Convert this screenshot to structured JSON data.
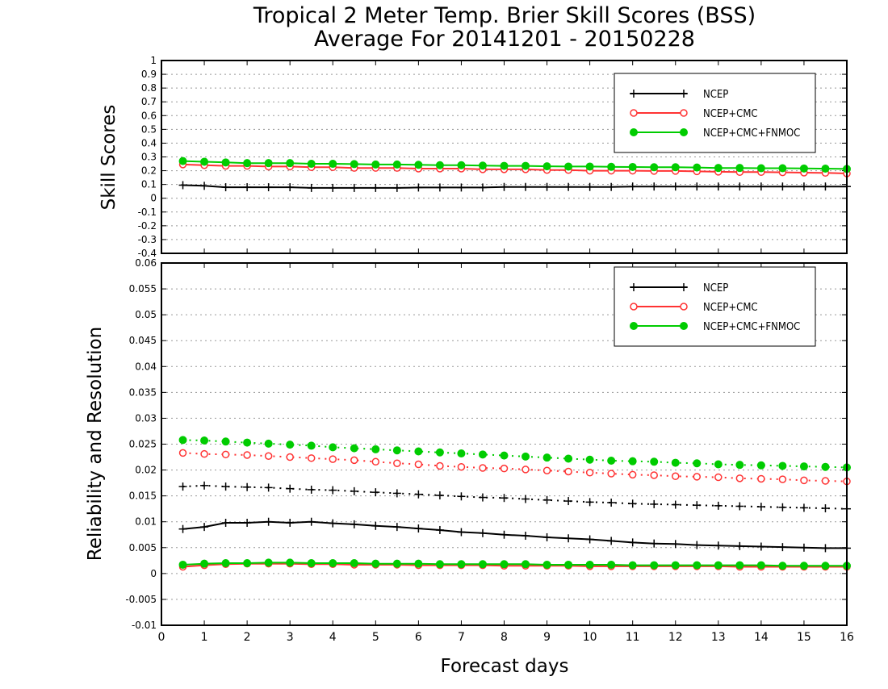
{
  "title_line1": "Tropical 2 Meter Temp. Brier Skill Scores (BSS)",
  "title_line2": "Average For 20141201 - 20150228",
  "xlabel": "Forecast days",
  "colors": {
    "NCEP": "#000000",
    "NCEP+CMC": "#ff3333",
    "NCEP+CMC+FNMOC": "#00cc00"
  },
  "chart_data": [
    {
      "type": "line",
      "ylabel": "Skill Scores",
      "xlim": [
        0,
        16
      ],
      "ylim": [
        -0.4,
        1.0
      ],
      "x_ticks": [
        0,
        1,
        2,
        3,
        4,
        5,
        6,
        7,
        8,
        9,
        10,
        11,
        12,
        13,
        14,
        15,
        16
      ],
      "y_ticks": [
        "1",
        "0.9",
        "0.8",
        "0.7",
        "0.6",
        "0.5",
        "0.4",
        "0.3",
        "0.2",
        "0.1",
        "0",
        "-0.1",
        "-0.2",
        "-0.3",
        "-0.4"
      ],
      "grid": true,
      "legend_position": "top-right",
      "x": [
        0.5,
        1,
        1.5,
        2,
        2.5,
        3,
        3.5,
        4,
        4.5,
        5,
        5.5,
        6,
        6.5,
        7,
        7.5,
        8,
        8.5,
        9,
        9.5,
        10,
        10.5,
        11,
        11.5,
        12,
        12.5,
        13,
        13.5,
        14,
        14.5,
        15,
        15.5,
        16
      ],
      "series": [
        {
          "name": "NCEP",
          "style": "solid-plus",
          "values": [
            0.095,
            0.09,
            0.08,
            0.08,
            0.08,
            0.08,
            0.075,
            0.075,
            0.075,
            0.075,
            0.075,
            0.078,
            0.078,
            0.078,
            0.078,
            0.082,
            0.082,
            0.082,
            0.082,
            0.082,
            0.082,
            0.085,
            0.085,
            0.085,
            0.085,
            0.085,
            0.085,
            0.085,
            0.085,
            0.085,
            0.085,
            0.085
          ]
        },
        {
          "name": "NCEP+CMC",
          "style": "solid-open-circle",
          "values": [
            0.245,
            0.24,
            0.235,
            0.235,
            0.23,
            0.23,
            0.225,
            0.225,
            0.22,
            0.22,
            0.22,
            0.215,
            0.215,
            0.215,
            0.21,
            0.21,
            0.21,
            0.205,
            0.205,
            0.2,
            0.2,
            0.2,
            0.198,
            0.198,
            0.195,
            0.192,
            0.19,
            0.19,
            0.188,
            0.186,
            0.184,
            0.18
          ]
        },
        {
          "name": "NCEP+CMC+FNMOC",
          "style": "solid-filled-circle",
          "values": [
            0.27,
            0.265,
            0.26,
            0.255,
            0.255,
            0.255,
            0.25,
            0.25,
            0.248,
            0.245,
            0.245,
            0.243,
            0.24,
            0.24,
            0.237,
            0.235,
            0.235,
            0.232,
            0.23,
            0.23,
            0.228,
            0.227,
            0.225,
            0.225,
            0.223,
            0.22,
            0.22,
            0.218,
            0.218,
            0.216,
            0.215,
            0.213
          ]
        }
      ]
    },
    {
      "type": "line",
      "ylabel": "Reliability and Resolution",
      "xlabel": "Forecast days",
      "xlim": [
        0,
        16
      ],
      "ylim": [
        -0.01,
        0.06
      ],
      "x_ticks": [
        0,
        1,
        2,
        3,
        4,
        5,
        6,
        7,
        8,
        9,
        10,
        11,
        12,
        13,
        14,
        15,
        16
      ],
      "y_ticks": [
        "0.06",
        "0.055",
        "0.05",
        "0.045",
        "0.04",
        "0.035",
        "0.03",
        "0.025",
        "0.02",
        "0.015",
        "0.01",
        "0.005",
        "0",
        "-0.005",
        "-0.01"
      ],
      "grid": true,
      "legend_position": "top-right",
      "x": [
        0.5,
        1,
        1.5,
        2,
        2.5,
        3,
        3.5,
        4,
        4.5,
        5,
        5.5,
        6,
        6.5,
        7,
        7.5,
        8,
        8.5,
        9,
        9.5,
        10,
        10.5,
        11,
        11.5,
        12,
        12.5,
        13,
        13.5,
        14,
        14.5,
        15,
        15.5,
        16
      ],
      "legend": [
        "NCEP",
        "NCEP+CMC",
        "NCEP+CMC+FNMOC"
      ],
      "series": [
        {
          "name": "NCEP",
          "measure": "resolution",
          "style": "dotted-plus",
          "values": [
            0.0168,
            0.017,
            0.0168,
            0.0167,
            0.0166,
            0.0164,
            0.0162,
            0.0161,
            0.0159,
            0.0157,
            0.0155,
            0.0153,
            0.0151,
            0.0149,
            0.0147,
            0.0146,
            0.0144,
            0.0142,
            0.014,
            0.0138,
            0.0137,
            0.0135,
            0.0134,
            0.0133,
            0.0132,
            0.0131,
            0.013,
            0.0129,
            0.0128,
            0.0127,
            0.0126,
            0.0125
          ]
        },
        {
          "name": "NCEP+CMC",
          "measure": "resolution",
          "style": "dotted-open-circle",
          "values": [
            0.0233,
            0.0231,
            0.023,
            0.0229,
            0.0227,
            0.0225,
            0.0223,
            0.0221,
            0.0219,
            0.0216,
            0.0213,
            0.0211,
            0.0208,
            0.0206,
            0.0204,
            0.0203,
            0.0201,
            0.0199,
            0.0197,
            0.0195,
            0.0193,
            0.0191,
            0.019,
            0.0188,
            0.0187,
            0.0186,
            0.0184,
            0.0183,
            0.0182,
            0.018,
            0.0179,
            0.0178
          ]
        },
        {
          "name": "NCEP+CMC+FNMOC",
          "measure": "resolution",
          "style": "dotted-filled-circle",
          "values": [
            0.0258,
            0.0257,
            0.0255,
            0.0253,
            0.0251,
            0.0249,
            0.0247,
            0.0244,
            0.0242,
            0.024,
            0.0238,
            0.0236,
            0.0234,
            0.0232,
            0.023,
            0.0228,
            0.0226,
            0.0224,
            0.0222,
            0.022,
            0.0218,
            0.0217,
            0.0216,
            0.0214,
            0.0213,
            0.0211,
            0.021,
            0.0209,
            0.0208,
            0.0207,
            0.0206,
            0.0205
          ]
        },
        {
          "name": "NCEP",
          "measure": "reliability",
          "style": "solid-plus",
          "values": [
            0.0086,
            0.009,
            0.0098,
            0.0098,
            0.01,
            0.0098,
            0.01,
            0.0097,
            0.0095,
            0.0092,
            0.009,
            0.0087,
            0.0084,
            0.008,
            0.0078,
            0.0075,
            0.0073,
            0.007,
            0.0068,
            0.0066,
            0.0063,
            0.006,
            0.0058,
            0.0057,
            0.0055,
            0.0054,
            0.0053,
            0.0052,
            0.0051,
            0.005,
            0.0049,
            0.0049
          ]
        },
        {
          "name": "NCEP+CMC",
          "measure": "reliability",
          "style": "solid-open-circle",
          "values": [
            0.0013,
            0.0016,
            0.0018,
            0.0019,
            0.0019,
            0.0019,
            0.0018,
            0.0018,
            0.0017,
            0.0017,
            0.0017,
            0.0016,
            0.0016,
            0.0016,
            0.0016,
            0.0015,
            0.0015,
            0.0015,
            0.0015,
            0.0014,
            0.0014,
            0.0014,
            0.0014,
            0.0014,
            0.0014,
            0.0014,
            0.0013,
            0.0013,
            0.0013,
            0.0013,
            0.0013,
            0.0013
          ]
        },
        {
          "name": "NCEP+CMC+FNMOC",
          "measure": "reliability",
          "style": "solid-filled-circle",
          "values": [
            0.0017,
            0.0019,
            0.002,
            0.002,
            0.0021,
            0.0021,
            0.002,
            0.002,
            0.002,
            0.0019,
            0.0019,
            0.0019,
            0.0018,
            0.0018,
            0.0018,
            0.0018,
            0.0018,
            0.0017,
            0.0017,
            0.0017,
            0.0017,
            0.0016,
            0.0016,
            0.0016,
            0.0016,
            0.0016,
            0.0016,
            0.0016,
            0.0015,
            0.0015,
            0.0015,
            0.0015
          ]
        }
      ]
    }
  ]
}
